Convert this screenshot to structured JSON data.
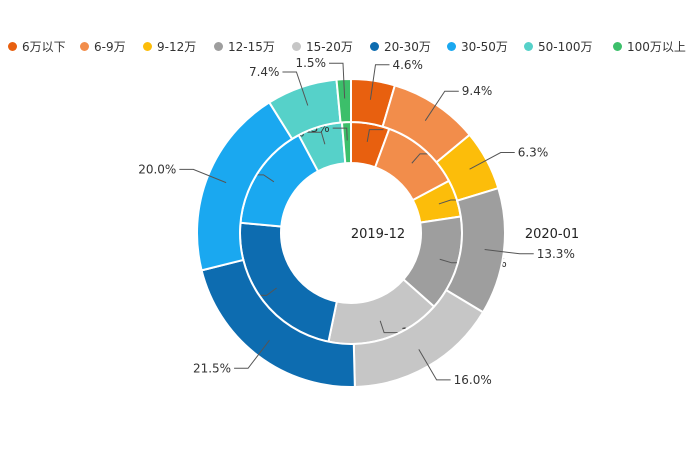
{
  "chart_data": {
    "type": "pie",
    "variant": "nested-donut",
    "categories": [
      "6万以下",
      "6-9万",
      "9-12万",
      "12-15万",
      "15-20万",
      "20-30万",
      "30-50万",
      "50-100万",
      "100万以上"
    ],
    "colors": [
      "#e8600f",
      "#f28d4b",
      "#fcbd0a",
      "#9e9e9e",
      "#c6c6c6",
      "#0d6cb0",
      "#1aa8f0",
      "#56d1c9",
      "#3cbf6a"
    ],
    "series": [
      {
        "name": "2019-12",
        "ring": "inner",
        "values": [
          5.6,
          11.6,
          5.4,
          13.9,
          16.7,
          23.2,
          15.7,
          6.5,
          1.3
        ]
      },
      {
        "name": "2020-01",
        "ring": "outer",
        "values": [
          4.6,
          9.4,
          6.3,
          13.3,
          16.0,
          21.5,
          20.0,
          7.4,
          1.5
        ]
      }
    ],
    "value_suffix": "%",
    "legend_position": "top"
  }
}
